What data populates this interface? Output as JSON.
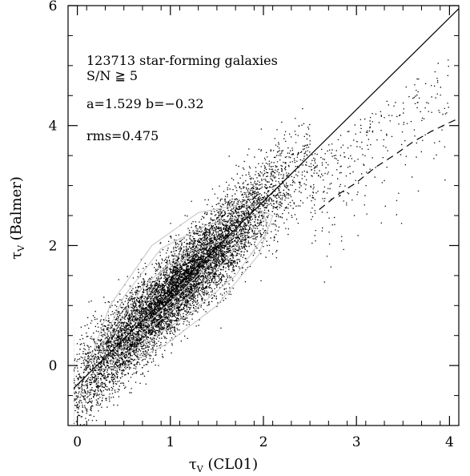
{
  "chart_data": {
    "type": "scatter",
    "title": "",
    "xlabel": {
      "symbol": "τ",
      "sub": "V",
      "rest": " (CL01)"
    },
    "ylabel": {
      "symbol": "τ",
      "sub": "V",
      "rest": " (Balmer)"
    },
    "xlim": [
      -0.1,
      4.1
    ],
    "ylim": [
      -1.0,
      6.0
    ],
    "xticks": [
      0,
      1,
      2,
      3,
      4
    ],
    "yticks": [
      0,
      2,
      4,
      6
    ],
    "grid": false,
    "annotations": {
      "line1": "123713 star-forming galaxies",
      "line2": "S/N ≧ 5",
      "line3": "a=1.529  b=−0.32",
      "line4": "rms=0.475"
    },
    "fit_line": {
      "slope": 1.529,
      "intercept": -0.32,
      "style": "solid"
    },
    "reference_curve": {
      "style": "dashed",
      "x": [
        2.6,
        2.8,
        3.0,
        3.2,
        3.4,
        3.6,
        3.8,
        4.0,
        4.1
      ],
      "y": [
        2.6,
        2.85,
        3.05,
        3.3,
        3.5,
        3.72,
        3.9,
        4.05,
        4.12
      ]
    },
    "contours": [
      {
        "x": [
          0.35,
          0.7,
          1.1,
          1.5,
          1.8,
          1.6,
          1.2,
          0.8,
          0.45,
          0.35
        ],
        "y": [
          0.45,
          1.3,
          1.85,
          2.05,
          2.2,
          1.75,
          1.15,
          0.65,
          0.25,
          0.45
        ]
      },
      {
        "x": [
          0.25,
          0.5,
          0.9,
          1.4,
          2.0,
          2.05,
          1.7,
          1.2,
          0.7,
          0.35,
          0.25
        ],
        "y": [
          0.3,
          1.15,
          1.95,
          2.35,
          2.55,
          2.25,
          1.5,
          0.85,
          0.35,
          0.05,
          0.3
        ]
      },
      {
        "x": [
          0.15,
          0.35,
          0.8,
          1.3,
          1.8,
          2.1,
          1.95,
          1.5,
          0.95,
          0.45,
          0.2,
          0.15
        ],
        "y": [
          0.15,
          1.0,
          2.0,
          2.55,
          2.7,
          2.5,
          1.85,
          1.0,
          0.35,
          -0.05,
          -0.05,
          0.15
        ]
      },
      {
        "x": [
          0.6,
          0.9,
          1.3,
          1.45,
          1.1,
          0.75,
          0.6
        ],
        "y": [
          0.75,
          1.55,
          1.9,
          1.75,
          1.2,
          0.7,
          0.75
        ]
      }
    ],
    "scatter_density": {
      "n_points_drawn": 9000,
      "relation_slope": 1.529,
      "relation_intercept": -0.32,
      "x_center": 1.05,
      "x_spread": 0.6
    }
  }
}
